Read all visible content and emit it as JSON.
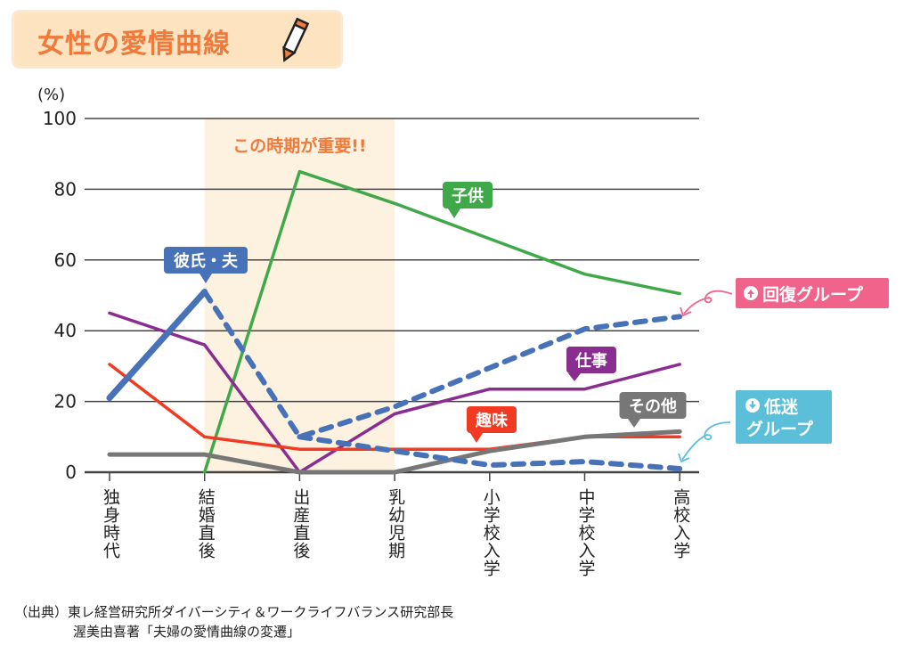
{
  "title": "女性の愛情曲線",
  "icons": {
    "title_decoration": "pencil-icon",
    "recovery": "up-arrow-circle-icon",
    "slump": "down-arrow-circle-icon"
  },
  "colors": {
    "highlight_band": "#fdf1e0",
    "highlight_text": "#f07a3c",
    "recovery": "#f0648c",
    "slump": "#5bbfd9"
  },
  "chart_data": {
    "type": "line",
    "ylabel": "(%)",
    "ylim": [
      0,
      100
    ],
    "yticks": [
      0,
      20,
      40,
      60,
      80,
      100
    ],
    "grid": true,
    "categories": [
      "独身時代",
      "結婚直後",
      "出産直後",
      "乳幼児期",
      "小学校入学",
      "中学校入学",
      "高校入学"
    ],
    "highlight": {
      "from": "結婚直後",
      "to": "乳幼児期",
      "label": "この時期が重要!!"
    },
    "series": [
      {
        "name": "子供",
        "color": "#3fa94a",
        "style": "solid",
        "values": [
          null,
          0,
          85,
          76,
          66,
          56,
          50.5
        ]
      },
      {
        "name": "彼氏・夫",
        "color": "#4872b8",
        "style": "solid-thick",
        "values": [
          21,
          51,
          null,
          null,
          null,
          null,
          null
        ]
      },
      {
        "name": "回復グループ",
        "color": "#4872b8",
        "style": "dashed",
        "values": [
          null,
          51,
          10,
          18.5,
          29.5,
          40.5,
          44
        ]
      },
      {
        "name": "低迷グループ",
        "color": "#4872b8",
        "style": "dashed",
        "values": [
          null,
          null,
          10,
          6,
          2,
          3,
          1
        ]
      },
      {
        "name": "仕事",
        "color": "#8a2d91",
        "style": "solid",
        "values": [
          45,
          36,
          0,
          16.5,
          23.5,
          23.5,
          30.5
        ]
      },
      {
        "name": "趣味",
        "color": "#f23a22",
        "style": "solid",
        "values": [
          30.5,
          10,
          6.5,
          6.5,
          6.5,
          10,
          10
        ]
      },
      {
        "name": "その他",
        "color": "#777777",
        "style": "solid",
        "values": [
          5,
          5,
          0,
          0,
          6,
          10,
          11.5
        ]
      }
    ],
    "annotations": {
      "recovery": "回復グループ",
      "slump_line1": "低迷",
      "slump_line2": "グループ"
    }
  },
  "source": {
    "line1": "（出典）東レ経営研究所ダイバーシティ＆ワークライフバランス研究部長",
    "line2": "渥美由喜著「夫婦の愛情曲線の変遷」"
  }
}
